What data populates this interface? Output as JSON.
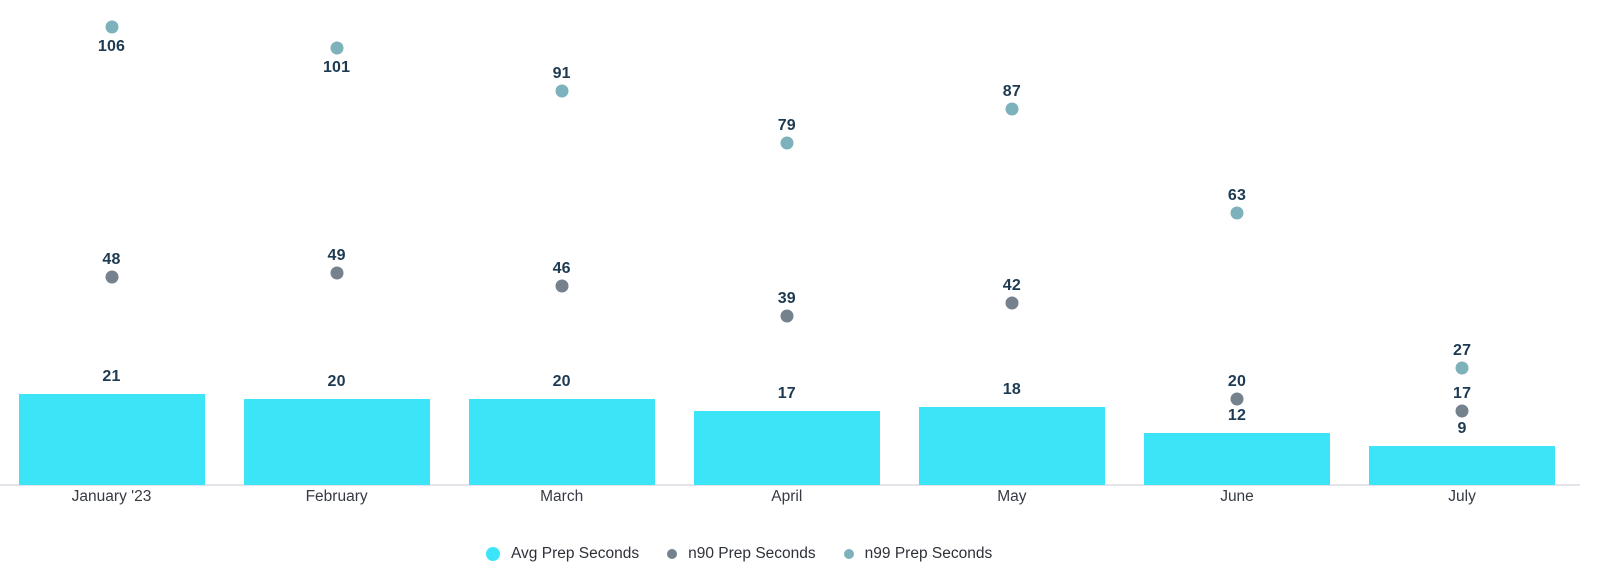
{
  "chart_data": {
    "type": "bar",
    "subtype": "bar-with-scatter-overlay",
    "title": "",
    "xlabel": "",
    "ylabel": "",
    "categories": [
      "January '23",
      "February",
      "March",
      "April",
      "May",
      "June",
      "July"
    ],
    "series": [
      {
        "name": "Avg Prep Seconds",
        "type": "bar",
        "color": "#3be5f7",
        "values": [
          21,
          20,
          20,
          17,
          18,
          12,
          9
        ]
      },
      {
        "name": "n90 Prep Seconds",
        "type": "scatter",
        "color": "#75818d",
        "values": [
          48,
          49,
          46,
          39,
          42,
          20,
          17
        ]
      },
      {
        "name": "n99 Prep Seconds",
        "type": "scatter",
        "color": "#7db2bc",
        "values": [
          106,
          101,
          91,
          79,
          87,
          63,
          27
        ]
      }
    ],
    "ylim": [
      0,
      112
    ],
    "grid": false,
    "y_axis_visible": false,
    "value_labels_visible": true,
    "value_label_color": "#1d3a52",
    "axis_line_color": "#e2e4e9",
    "legend_position": "bottom"
  }
}
